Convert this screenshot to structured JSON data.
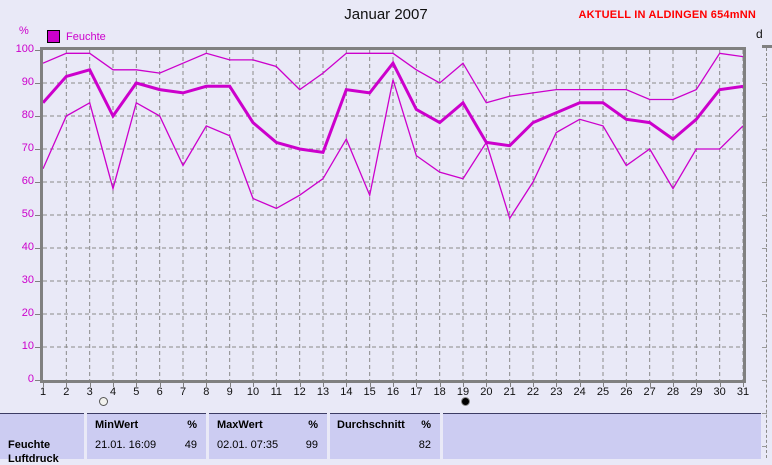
{
  "header": {
    "title": "Januar 2007",
    "status": "AKTUELL IN ALDINGEN 654mNN"
  },
  "legend": {
    "series_label": "Feuchte",
    "swatch_color": "#cc00cc"
  },
  "axis": {
    "y_unit": "%",
    "x_unit": "d",
    "y_ticks": [
      100,
      90,
      80,
      70,
      60,
      50,
      40,
      30,
      20,
      10,
      0
    ],
    "x_ticks": [
      1,
      2,
      3,
      4,
      5,
      6,
      7,
      8,
      9,
      10,
      11,
      12,
      13,
      14,
      15,
      16,
      17,
      18,
      19,
      20,
      21,
      22,
      23,
      24,
      25,
      26,
      27,
      28,
      29,
      30,
      31
    ]
  },
  "chart_data": {
    "type": "line",
    "title": "Januar 2007",
    "xlabel": "d",
    "ylabel": "%",
    "xlim": [
      1,
      31
    ],
    "ylim": [
      0,
      100
    ],
    "grid": true,
    "line_color": "#cc00cc",
    "x": [
      1,
      2,
      3,
      4,
      5,
      6,
      7,
      8,
      9,
      10,
      11,
      12,
      13,
      14,
      15,
      16,
      17,
      18,
      19,
      20,
      21,
      22,
      23,
      24,
      25,
      26,
      27,
      28,
      29,
      30,
      31
    ],
    "series": [
      {
        "key": "feuchte-max",
        "style": "thin",
        "values": [
          96,
          99,
          99,
          94,
          94,
          93,
          96,
          99,
          97,
          97,
          95,
          88,
          93,
          99,
          99,
          99,
          94,
          90,
          96,
          84,
          86,
          87,
          88,
          88,
          88,
          88,
          85,
          85,
          88,
          99,
          98
        ]
      },
      {
        "key": "feuchte-mittel",
        "style": "thick",
        "values": [
          84,
          92,
          94,
          80,
          90,
          88,
          87,
          89,
          89,
          78,
          72,
          70,
          69,
          88,
          87,
          96,
          82,
          78,
          84,
          72,
          71,
          78,
          81,
          84,
          84,
          79,
          78,
          73,
          79,
          88,
          89
        ]
      },
      {
        "key": "feuchte-min",
        "style": "thin",
        "values": [
          64,
          80,
          84,
          58,
          84,
          80,
          65,
          77,
          74,
          55,
          52,
          56,
          61,
          73,
          56,
          91,
          68,
          63,
          61,
          72,
          49,
          60,
          75,
          79,
          77,
          65,
          70,
          58,
          70,
          70,
          77
        ]
      }
    ]
  },
  "markers": {
    "full_moon_day": 3.6,
    "new_moon_day": 19.1
  },
  "table": {
    "row_label": "Feuchte",
    "next_row_label_clipped": "Luftdruck",
    "min": {
      "header": "MinWert",
      "unit": "%",
      "time": "21.01.  16:09",
      "amount": "49"
    },
    "max": {
      "header": "MaxWert",
      "unit": "%",
      "time": "02.01.  07:35",
      "amount": "99"
    },
    "avg": {
      "header": "Durchschnitt",
      "unit": "%",
      "amount": "82"
    }
  }
}
